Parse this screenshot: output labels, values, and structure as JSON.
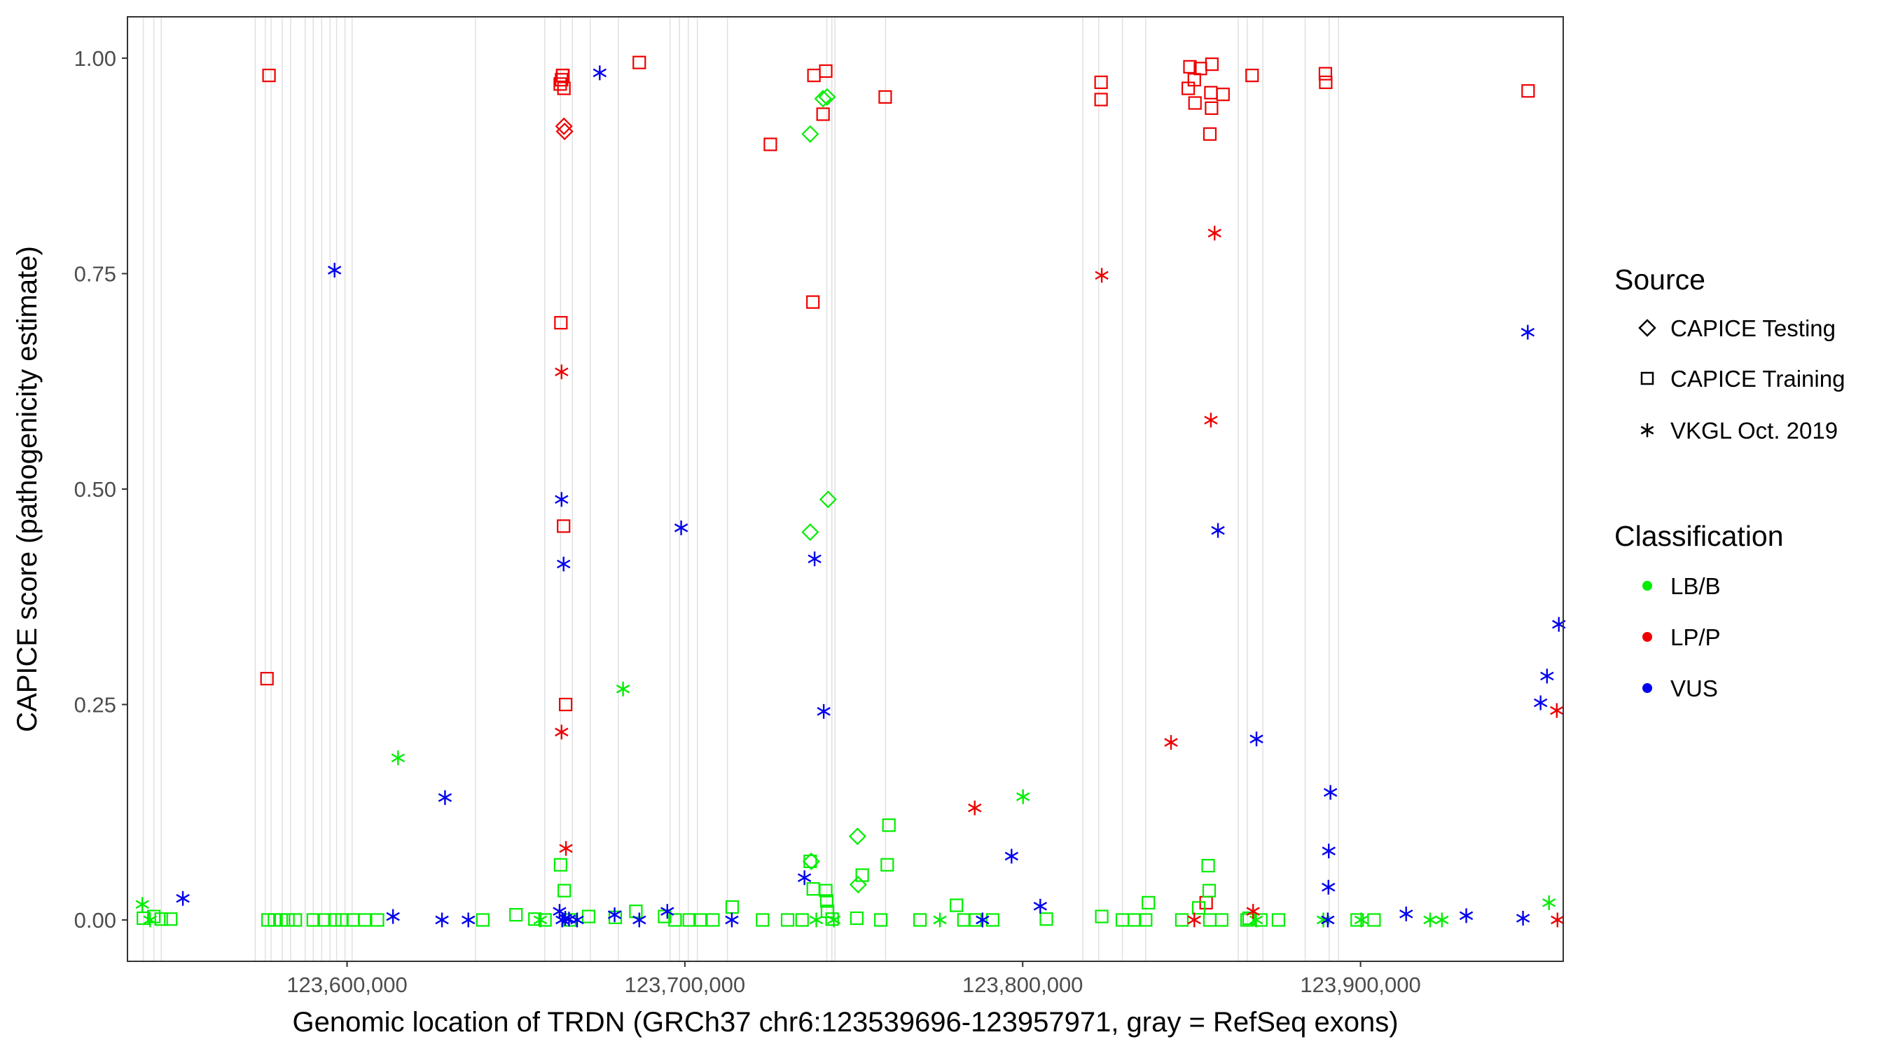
{
  "chart_data": {
    "type": "scatter",
    "xlabel": "Genomic location of TRDN (GRCh37 chr6:123539696-123957971, gray = RefSeq exons)",
    "ylabel": "CAPICE score (pathogenicity estimate)",
    "xlim": [
      123535000,
      123960000
    ],
    "ylim": [
      -0.048,
      1.048
    ],
    "x_ticks": [
      {
        "value": 123600000,
        "label": "123,600,000"
      },
      {
        "value": 123700000,
        "label": "123,700,000"
      },
      {
        "value": 123800000,
        "label": "123,800,000"
      },
      {
        "value": 123900000,
        "label": "123,900,000"
      }
    ],
    "y_ticks": [
      {
        "value": 0.0,
        "label": "0.00"
      },
      {
        "value": 0.25,
        "label": "0.25"
      },
      {
        "value": 0.5,
        "label": "0.50"
      },
      {
        "value": 0.75,
        "label": "0.75"
      },
      {
        "value": 1.0,
        "label": "1.00"
      }
    ],
    "exon_lines": [
      123539700,
      123542800,
      123545000,
      123572800,
      123575800,
      123577500,
      123580800,
      123583300,
      123587600,
      123590000,
      123592500,
      123595000,
      123596900,
      123599400,
      123601500,
      123638000,
      123658500,
      123663200,
      123666700,
      123672000,
      123680300,
      123695600,
      123698400,
      123701000,
      123703700,
      123712600,
      123742000,
      123743500,
      123744400,
      123759400,
      123817800,
      123822500,
      123829500,
      123836400,
      123863800,
      123866500,
      123871100,
      123883600,
      123890700,
      123893500
    ],
    "legend": {
      "source_title": "Source",
      "source_items": [
        {
          "label": "CAPICE Testing",
          "shape": "diamond"
        },
        {
          "label": "CAPICE Training",
          "shape": "square"
        },
        {
          "label": "VKGL Oct. 2019",
          "shape": "asterisk"
        }
      ],
      "class_title": "Classification",
      "class_items": [
        {
          "label": "LB/B",
          "color": "#00ee00"
        },
        {
          "label": "LP/P",
          "color": "#ee0000"
        },
        {
          "label": "VUS",
          "color": "#0000ee"
        }
      ],
      "placement": "right"
    },
    "colors": {
      "LB/B": "#00ee00",
      "LP/P": "#ee0000",
      "VUS": "#0000ee"
    },
    "grid": false,
    "series": [
      {
        "source": "CAPICE Training",
        "class": "LP/P",
        "points": [
          [
            123576900,
            0.98
          ],
          [
            123576300,
            0.28
          ],
          [
            123663100,
            0.97
          ],
          [
            123663500,
            0.975
          ],
          [
            123663800,
            0.98
          ],
          [
            123663900,
            0.98
          ],
          [
            123664200,
            0.965
          ],
          [
            123663300,
            0.693
          ],
          [
            123664100,
            0.457
          ],
          [
            123664700,
            0.25
          ],
          [
            123686500,
            0.995
          ],
          [
            123725300,
            0.9
          ],
          [
            123738200,
            0.98
          ],
          [
            123741700,
            0.985
          ],
          [
            123740900,
            0.935
          ],
          [
            123737900,
            0.717
          ],
          [
            123759300,
            0.955
          ],
          [
            123823200,
            0.972
          ],
          [
            123823200,
            0.952
          ],
          [
            123849500,
            0.99
          ],
          [
            123849000,
            0.965
          ],
          [
            123850800,
            0.975
          ],
          [
            123851000,
            0.948
          ],
          [
            123852600,
            0.988
          ],
          [
            123856000,
            0.993
          ],
          [
            123855700,
            0.96
          ],
          [
            123855900,
            0.942
          ],
          [
            123855400,
            0.912
          ],
          [
            123859300,
            0.958
          ],
          [
            123867900,
            0.98
          ],
          [
            123889600,
            0.982
          ],
          [
            123889700,
            0.972
          ],
          [
            123949600,
            0.962
          ],
          [
            123854300,
            0.02
          ]
        ]
      },
      {
        "source": "CAPICE Training",
        "class": "LB/B",
        "points": [
          [
            123539700,
            0.002
          ],
          [
            123542800,
            0.004
          ],
          [
            123545000,
            0.001
          ],
          [
            123547800,
            0.001
          ],
          [
            123576600,
            0.0
          ],
          [
            123578500,
            0.0
          ],
          [
            123580500,
            0.0
          ],
          [
            123582500,
            0.0
          ],
          [
            123584700,
            0.0
          ],
          [
            123590000,
            0.0
          ],
          [
            123593200,
            0.0
          ],
          [
            123596400,
            0.0
          ],
          [
            123598500,
            0.0
          ],
          [
            123601800,
            0.0
          ],
          [
            123605200,
            0.0
          ],
          [
            123609000,
            0.0
          ],
          [
            123640200,
            0.0
          ],
          [
            123650000,
            0.006
          ],
          [
            123655600,
            0.001
          ],
          [
            123658600,
            0.0
          ],
          [
            123663200,
            0.064
          ],
          [
            123664300,
            0.034
          ],
          [
            123665900,
            0.0
          ],
          [
            123671500,
            0.004
          ],
          [
            123679400,
            0.003
          ],
          [
            123685500,
            0.01
          ],
          [
            123694000,
            0.004
          ],
          [
            123697100,
            0.0
          ],
          [
            123701300,
            0.0
          ],
          [
            123704500,
            0.0
          ],
          [
            123708300,
            0.0
          ],
          [
            123714000,
            0.015
          ],
          [
            123723000,
            0.0
          ],
          [
            123730400,
            0.0
          ],
          [
            123734700,
            0.0
          ],
          [
            123737100,
            0.068
          ],
          [
            123738000,
            0.036
          ],
          [
            123741700,
            0.034
          ],
          [
            123742000,
            0.022
          ],
          [
            123742200,
            0.01
          ],
          [
            123743600,
            0.001
          ],
          [
            123750900,
            0.002
          ],
          [
            123752500,
            0.052
          ],
          [
            123758000,
            0.0
          ],
          [
            123759900,
            0.064
          ],
          [
            123760400,
            0.11
          ],
          [
            123769600,
            0.0
          ],
          [
            123780400,
            0.017
          ],
          [
            123782600,
            0.0
          ],
          [
            123785900,
            0.0
          ],
          [
            123791100,
            0.0
          ],
          [
            123807000,
            0.001
          ],
          [
            123823400,
            0.004
          ],
          [
            123829500,
            0.0
          ],
          [
            123833100,
            0.0
          ],
          [
            123836400,
            0.0
          ],
          [
            123837200,
            0.02
          ],
          [
            123847100,
            0.0
          ],
          [
            123852100,
            0.014
          ],
          [
            123854900,
            0.063
          ],
          [
            123855200,
            0.034
          ],
          [
            123855400,
            0.0
          ],
          [
            123858900,
            0.0
          ],
          [
            123866400,
            0.0
          ],
          [
            123867000,
            0.002
          ],
          [
            123870500,
            0.0
          ],
          [
            123875700,
            0.0
          ],
          [
            123899000,
            0.0
          ],
          [
            123904000,
            0.0
          ]
        ]
      },
      {
        "source": "CAPICE Testing",
        "class": "LP/P",
        "points": [
          [
            123664200,
            0.921
          ],
          [
            123664400,
            0.915
          ]
        ]
      },
      {
        "source": "CAPICE Testing",
        "class": "LB/B",
        "points": [
          [
            123737100,
            0.912
          ],
          [
            123737400,
            0.068
          ],
          [
            123740900,
            0.953
          ],
          [
            123742100,
            0.955
          ],
          [
            123742400,
            0.488
          ],
          [
            123737100,
            0.45
          ],
          [
            123751100,
            0.097
          ],
          [
            123751300,
            0.041
          ]
        ]
      },
      {
        "source": "VKGL Oct. 2019",
        "class": "LB/B",
        "points": [
          [
            123539400,
            0.018
          ],
          [
            123541700,
            0.0
          ],
          [
            123615100,
            0.188
          ],
          [
            123657200,
            0.0
          ],
          [
            123681700,
            0.268
          ],
          [
            123738900,
            0.0
          ],
          [
            123744100,
            0.0
          ],
          [
            123775500,
            0.0
          ],
          [
            123800100,
            0.143
          ],
          [
            123869100,
            0.0
          ],
          [
            123889000,
            0.0
          ],
          [
            123900200,
            0.0
          ],
          [
            123920600,
            0.0
          ],
          [
            123924100,
            0.0
          ],
          [
            123955800,
            0.02
          ]
        ]
      },
      {
        "source": "VKGL Oct. 2019",
        "class": "LP/P",
        "points": [
          [
            123663500,
            0.636
          ],
          [
            123663500,
            0.218
          ],
          [
            123664800,
            0.083
          ],
          [
            123785800,
            0.13
          ],
          [
            123823400,
            0.748
          ],
          [
            123843900,
            0.206
          ],
          [
            123850800,
            0.0
          ],
          [
            123856800,
            0.797
          ],
          [
            123855700,
            0.58
          ],
          [
            123868200,
            0.01
          ],
          [
            123958100,
            0.243
          ],
          [
            123958300,
            0.0
          ]
        ]
      },
      {
        "source": "VKGL Oct. 2019",
        "class": "VUS",
        "points": [
          [
            123596300,
            0.754
          ],
          [
            123551400,
            0.025
          ],
          [
            123613600,
            0.004
          ],
          [
            123629000,
            0.142
          ],
          [
            123628100,
            0.0
          ],
          [
            123635900,
            0.0
          ],
          [
            123663500,
            0.488
          ],
          [
            123664100,
            0.413
          ],
          [
            123662900,
            0.01
          ],
          [
            123663700,
            0.0
          ],
          [
            123664600,
            0.002
          ],
          [
            123665700,
            0.001
          ],
          [
            123668100,
            0.0
          ],
          [
            123674800,
            0.983
          ],
          [
            123679200,
            0.006
          ],
          [
            123686500,
            0.0
          ],
          [
            123694800,
            0.01
          ],
          [
            123698900,
            0.455
          ],
          [
            123713900,
            0.0
          ],
          [
            123735400,
            0.049
          ],
          [
            123738400,
            0.419
          ],
          [
            123741100,
            0.242
          ],
          [
            123788100,
            0.0
          ],
          [
            123796700,
            0.074
          ],
          [
            123805200,
            0.016
          ],
          [
            123857800,
            0.452
          ],
          [
            123869200,
            0.21
          ],
          [
            123891100,
            0.148
          ],
          [
            123890600,
            0.08
          ],
          [
            123890500,
            0.038
          ],
          [
            123890300,
            0.0
          ],
          [
            123913500,
            0.007
          ],
          [
            123931300,
            0.005
          ],
          [
            123949500,
            0.682
          ],
          [
            123948100,
            0.002
          ],
          [
            123953300,
            0.252
          ],
          [
            123955200,
            0.283
          ],
          [
            123958700,
            0.343
          ]
        ]
      }
    ]
  }
}
